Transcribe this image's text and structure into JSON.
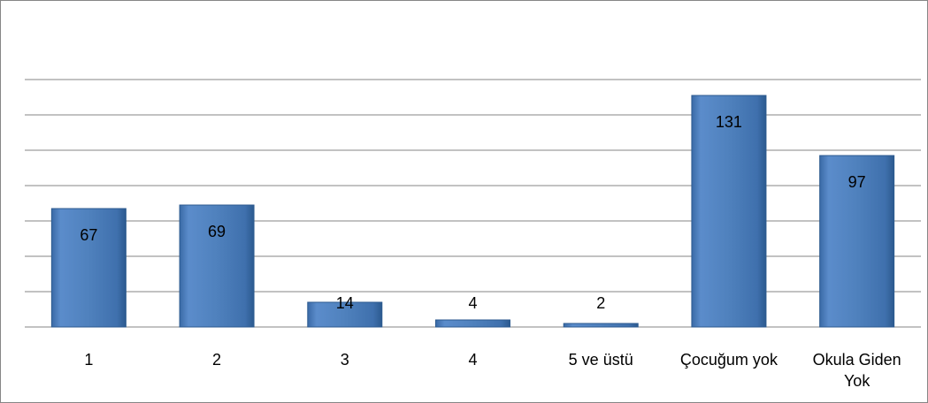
{
  "chart_data": {
    "type": "bar",
    "categories": [
      "1",
      "2",
      "3",
      "4",
      "5 ve üstü",
      "Çocuğum yok",
      "Okula Giden Yok"
    ],
    "values": [
      67,
      69,
      14,
      4,
      2,
      131,
      97
    ],
    "color": "#4f81bd",
    "ylim": [
      0,
      140
    ],
    "yticks": [
      0,
      20,
      40,
      60,
      80,
      100,
      120,
      140
    ],
    "grid": true
  }
}
